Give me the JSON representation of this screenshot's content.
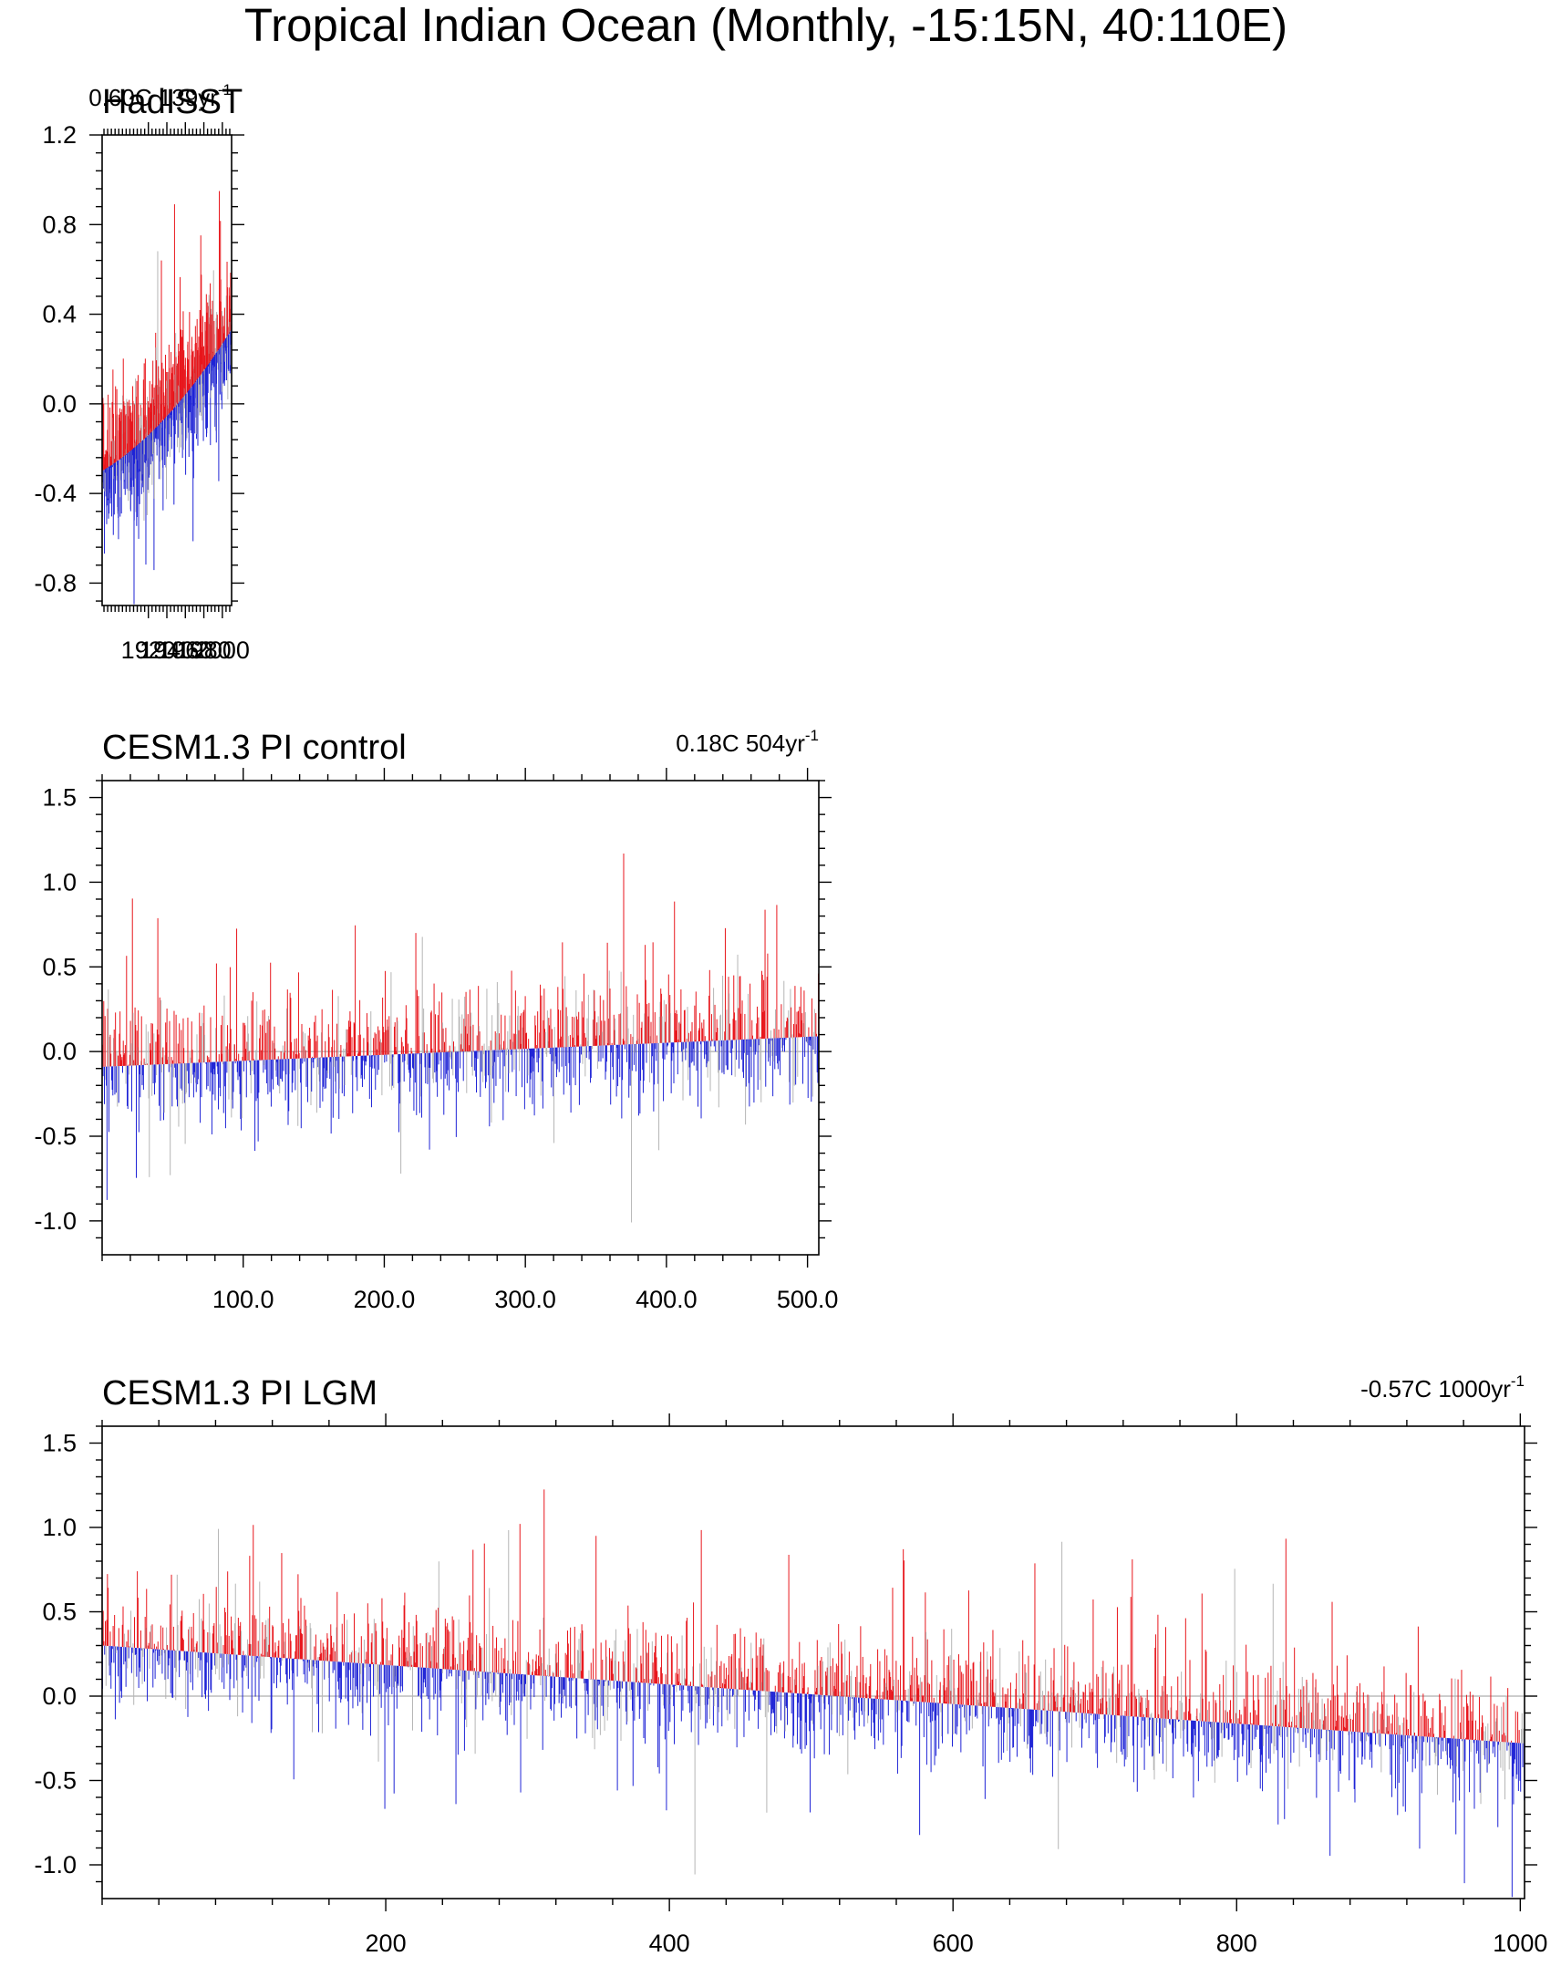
{
  "figure": {
    "title": "Tropical Indian Ocean (Monthly, -15:15N, 40:110E)"
  },
  "colors": {
    "positive": "#e8161c",
    "negative": "#1f24d6",
    "noise": "#b5b5b5",
    "axis": "#000000",
    "zero_line": "#9a9a9a"
  },
  "chart_data": [
    {
      "id": "hadisst",
      "type": "bar",
      "title": "HadISST",
      "trend_label": "0.60C 139yr",
      "trend_exponent": "-1",
      "xlabel": "",
      "ylabel": "",
      "xlim": [
        1870,
        2010
      ],
      "ylim": [
        -0.9,
        1.2
      ],
      "x_ticks": [
        1920,
        1940,
        1960,
        1980,
        2000
      ],
      "x_tick_labels": [
        "1920",
        "1940",
        "1960",
        "1980",
        "2000"
      ],
      "y_ticks": [
        -0.8,
        -0.4,
        0.0,
        0.4,
        0.8,
        1.2
      ],
      "y_tick_labels": [
        "-0.8",
        "-0.4",
        "0.0",
        "0.4",
        "0.8",
        "1.2"
      ],
      "baseline_trend": {
        "start": -0.3,
        "end": 0.33,
        "shape": "quadratic"
      },
      "series_description": "monthly SST anomaly bars relative to trend; red above, blue below",
      "n_samples": 700,
      "amplitude": 0.25,
      "spike_amplitude": 0.45,
      "seed": 11
    },
    {
      "id": "pi-control",
      "type": "bar",
      "title": "CESM1.3 PI control",
      "trend_label": "0.18C 504yr",
      "trend_exponent": "-1",
      "xlabel": "",
      "ylabel": "",
      "xlim": [
        0,
        508
      ],
      "ylim": [
        -1.2,
        1.6
      ],
      "x_ticks": [
        100,
        200,
        300,
        400,
        500
      ],
      "x_tick_labels": [
        "100.0",
        "200.0",
        "300.0",
        "400.0",
        "500.0"
      ],
      "y_ticks": [
        -1.0,
        -0.5,
        0.0,
        0.5,
        1.0,
        1.5
      ],
      "y_tick_labels": [
        "-1.0",
        "-0.5",
        "0.0",
        "0.5",
        "1.0",
        "1.5"
      ],
      "baseline_trend": {
        "start": -0.09,
        "end": 0.09,
        "shape": "linear"
      },
      "series_description": "monthly SST anomaly bars relative to trend; red above, blue below",
      "n_samples": 1100,
      "amplitude": 0.3,
      "spike_amplitude": 0.55,
      "seed": 29
    },
    {
      "id": "lgm",
      "type": "bar",
      "title": "CESM1.3 PI LGM",
      "trend_label": "-0.57C 1000yr",
      "trend_exponent": "-1",
      "xlabel": "",
      "ylabel": "",
      "xlim": [
        0,
        1003
      ],
      "ylim": [
        -1.2,
        1.6
      ],
      "x_ticks": [
        200,
        400,
        600,
        800,
        1000
      ],
      "x_tick_labels": [
        "200",
        "400",
        "600",
        "800",
        "1000"
      ],
      "y_ticks": [
        -1.0,
        -0.5,
        0.0,
        0.5,
        1.0,
        1.5
      ],
      "y_tick_labels": [
        "-1.0",
        "-0.5",
        "0.0",
        "0.5",
        "1.0",
        "1.5"
      ],
      "baseline_trend": {
        "start": 0.3,
        "end": -0.28,
        "shape": "linear"
      },
      "series_description": "monthly SST anomaly bars relative to trend; red above, blue below",
      "n_samples": 2000,
      "amplitude": 0.28,
      "spike_amplitude": 0.6,
      "seed": 47
    }
  ]
}
